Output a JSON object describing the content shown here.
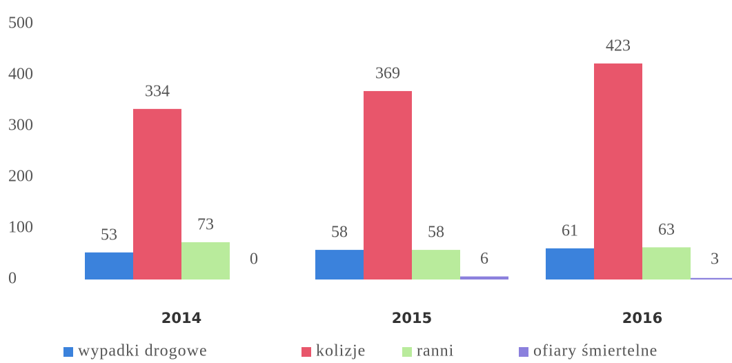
{
  "chart_data": {
    "type": "bar",
    "categories": [
      "2014",
      "2015",
      "2016"
    ],
    "series": [
      {
        "name": "wypadki drogowe",
        "color": "#3b82dc",
        "values": [
          53,
          58,
          61
        ]
      },
      {
        "name": "kolizje",
        "color": "#e8566b",
        "values": [
          334,
          369,
          423
        ]
      },
      {
        "name": "ranni",
        "color": "#b9eb9c",
        "values": [
          73,
          58,
          63
        ]
      },
      {
        "name": "ofiary śmiertelne",
        "color": "#8b80dd",
        "values": [
          0,
          6,
          3
        ]
      }
    ],
    "ylim": [
      0,
      500
    ],
    "yticks": [
      0,
      100,
      200,
      300,
      400,
      500
    ],
    "grid": false,
    "legend": "bottom"
  }
}
